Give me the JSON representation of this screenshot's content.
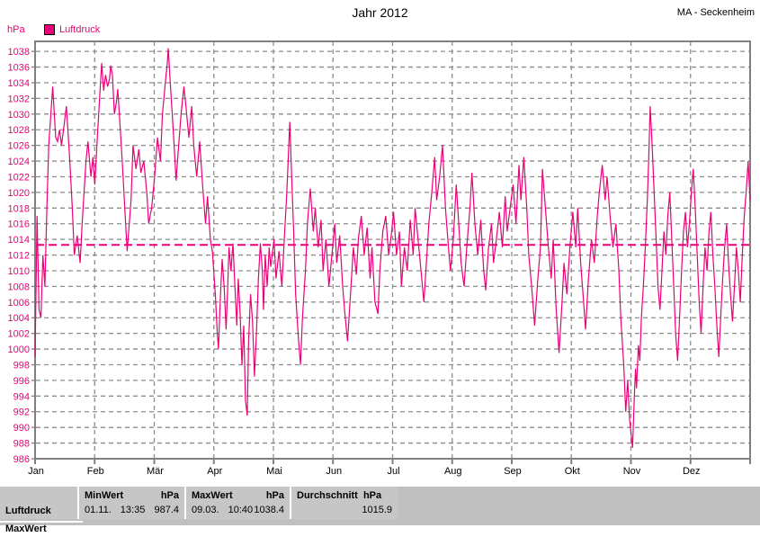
{
  "header": {
    "title": "Jahr 2012",
    "station": "MA - Seckenheim"
  },
  "legend": {
    "label": "Luftdruck"
  },
  "axis": {
    "unit": "hPa",
    "y_ticks": [
      1038,
      1036,
      1034,
      1032,
      1030,
      1028,
      1026,
      1024,
      1022,
      1020,
      1018,
      1016,
      1014,
      1012,
      1010,
      1008,
      1006,
      1004,
      1002,
      1000,
      998,
      996,
      994,
      992,
      990,
      988,
      986
    ],
    "months": [
      "Jan",
      "Feb",
      "Mär",
      "Apr",
      "Mai",
      "Jun",
      "Jul",
      "Aug",
      "Sep",
      "Okt",
      "Nov",
      "Dez"
    ]
  },
  "colors": {
    "series": "#ea0078",
    "grid": "#8c8c8c",
    "frame": "#808080",
    "text": "#000000",
    "table_bg": "#c0c0c0"
  },
  "table": {
    "headers": {
      "min_label": "MinWert",
      "min_unit": "hPa",
      "max_label": "MaxWert",
      "max_unit": "hPa",
      "avg_header": "Durchschnitt  hPa"
    },
    "row": {
      "name": "Luftdruck",
      "min_date": "01.11.",
      "min_time": "13:35",
      "min_value": "987.4",
      "max_date": "09.03.",
      "max_time": "10:40",
      "max_value": "1038.4",
      "avg_value": "1015.9"
    },
    "clipped_row_label": "MaxWert"
  },
  "chart_data": {
    "type": "line",
    "title": "Jahr 2012",
    "station": "MA - Seckenheim",
    "series_name": "Luftdruck",
    "unit": "hPa",
    "ylim": [
      986,
      1038
    ],
    "y_tick_step": 2,
    "x_months": [
      "Jan",
      "Feb",
      "Mär",
      "Apr",
      "Mai",
      "Jun",
      "Jul",
      "Aug",
      "Sep",
      "Okt",
      "Nov",
      "Dez"
    ],
    "grid": true,
    "legend_position": "top-left",
    "mean_line_hpa": 1013.3,
    "stats": {
      "min": {
        "date": "01.11.",
        "time": "13:35",
        "value": 987.4
      },
      "max": {
        "date": "09.03.",
        "time": "10:40",
        "value": 1038.4
      },
      "avg": 1015.9
    },
    "points_day_hpa": [
      [
        1,
        999
      ],
      [
        2,
        1017
      ],
      [
        3,
        1005
      ],
      [
        4,
        1004
      ],
      [
        5,
        1012
      ],
      [
        6,
        1008
      ],
      [
        7,
        1018
      ],
      [
        8,
        1026
      ],
      [
        10,
        1033.5
      ],
      [
        11.5,
        1027
      ],
      [
        12.5,
        1026.5
      ],
      [
        13.5,
        1028
      ],
      [
        14.5,
        1026
      ],
      [
        16,
        1029
      ],
      [
        17,
        1031
      ],
      [
        18.5,
        1025
      ],
      [
        20,
        1018
      ],
      [
        21,
        1012
      ],
      [
        22.5,
        1014.5
      ],
      [
        24,
        1011
      ],
      [
        25,
        1016
      ],
      [
        27,
        1024
      ],
      [
        28,
        1026.5
      ],
      [
        29.5,
        1022
      ],
      [
        30.5,
        1024.5
      ],
      [
        31.5,
        1021
      ],
      [
        33,
        1028
      ],
      [
        34.5,
        1034.5
      ],
      [
        35,
        1036.5
      ],
      [
        36,
        1033
      ],
      [
        37,
        1035
      ],
      [
        38,
        1033.5
      ],
      [
        39,
        1034.5
      ],
      [
        39.6,
        1036.2
      ],
      [
        40.5,
        1035
      ],
      [
        41.5,
        1030
      ],
      [
        42.5,
        1031.5
      ],
      [
        43.2,
        1033.2
      ],
      [
        44,
        1030
      ],
      [
        45.5,
        1024
      ],
      [
        47,
        1017
      ],
      [
        48,
        1012.5
      ],
      [
        50,
        1019
      ],
      [
        51,
        1026
      ],
      [
        52.5,
        1023
      ],
      [
        54,
        1025.5
      ],
      [
        55,
        1022.5
      ],
      [
        56.5,
        1024
      ],
      [
        58,
        1020
      ],
      [
        59,
        1016
      ],
      [
        60.5,
        1018
      ],
      [
        62,
        1022
      ],
      [
        63.5,
        1027
      ],
      [
        65,
        1024
      ],
      [
        66,
        1030
      ],
      [
        67.5,
        1034
      ],
      [
        68.5,
        1036.5
      ],
      [
        69,
        1038.4
      ],
      [
        70,
        1034
      ],
      [
        71,
        1030
      ],
      [
        72,
        1026
      ],
      [
        73,
        1021.5
      ],
      [
        74,
        1025
      ],
      [
        75.5,
        1030
      ],
      [
        77,
        1033.5
      ],
      [
        78,
        1031
      ],
      [
        79.5,
        1027
      ],
      [
        81,
        1031
      ],
      [
        82,
        1026
      ],
      [
        83.5,
        1022
      ],
      [
        85,
        1026.5
      ],
      [
        86.5,
        1021
      ],
      [
        88,
        1016
      ],
      [
        89,
        1019.5
      ],
      [
        90.5,
        1014
      ],
      [
        91.5,
        1012.5
      ],
      [
        93,
        1007
      ],
      [
        94,
        1002
      ],
      [
        94.6,
        1000
      ],
      [
        95.5,
        1006
      ],
      [
        96.5,
        1011.5
      ],
      [
        97.5,
        1008
      ],
      [
        98.5,
        1002.5
      ],
      [
        99.2,
        1007
      ],
      [
        100,
        1013
      ],
      [
        101,
        1010
      ],
      [
        102,
        1013.5
      ],
      [
        103,
        1008
      ],
      [
        104,
        1003
      ],
      [
        104.7,
        1009
      ],
      [
        105.6,
        1005
      ],
      [
        106.6,
        998
      ],
      [
        107.5,
        1003
      ],
      [
        108.4,
        993.5
      ],
      [
        109.3,
        991.5
      ],
      [
        110,
        1001
      ],
      [
        111,
        1007
      ],
      [
        112,
        1003.5
      ],
      [
        113,
        996.5
      ],
      [
        114,
        1002
      ],
      [
        115,
        1009
      ],
      [
        116,
        1013.5
      ],
      [
        117,
        1010
      ],
      [
        117.6,
        1005
      ],
      [
        118.5,
        1012
      ],
      [
        119.5,
        1008
      ],
      [
        120.5,
        1013
      ],
      [
        121.3,
        1010.5
      ],
      [
        123,
        1014
      ],
      [
        124,
        1009
      ],
      [
        125.5,
        1012.5
      ],
      [
        127,
        1008
      ],
      [
        128,
        1013
      ],
      [
        129.5,
        1020
      ],
      [
        131,
        1029
      ],
      [
        132,
        1022
      ],
      [
        133,
        1015
      ],
      [
        134,
        1007
      ],
      [
        135.5,
        1001
      ],
      [
        136.5,
        998
      ],
      [
        137.5,
        1004
      ],
      [
        139,
        1010
      ],
      [
        140,
        1016
      ],
      [
        141.5,
        1020.5
      ],
      [
        143,
        1015
      ],
      [
        144,
        1018
      ],
      [
        145.5,
        1013
      ],
      [
        147,
        1016.5
      ],
      [
        148,
        1010
      ],
      [
        149.5,
        1014
      ],
      [
        151,
        1008
      ],
      [
        152.5,
        1012
      ],
      [
        154,
        1016
      ],
      [
        155,
        1011
      ],
      [
        156.5,
        1014.5
      ],
      [
        158,
        1008
      ],
      [
        159,
        1005
      ],
      [
        160.5,
        1001
      ],
      [
        162,
        1007
      ],
      [
        163.5,
        1013
      ],
      [
        165,
        1009.5
      ],
      [
        166,
        1014
      ],
      [
        167.5,
        1017
      ],
      [
        169,
        1012
      ],
      [
        170.5,
        1015.5
      ],
      [
        172,
        1009
      ],
      [
        173,
        1013
      ],
      [
        174.5,
        1006
      ],
      [
        176,
        1004.5
      ],
      [
        177,
        1010
      ],
      [
        178.5,
        1015
      ],
      [
        180,
        1017
      ],
      [
        181.5,
        1012
      ],
      [
        182.8,
        1014.5
      ],
      [
        184,
        1017.5
      ],
      [
        185.5,
        1012
      ],
      [
        187,
        1015
      ],
      [
        188,
        1008
      ],
      [
        189.5,
        1013
      ],
      [
        191,
        1010
      ],
      [
        192.5,
        1016.5
      ],
      [
        194,
        1012
      ],
      [
        195,
        1018
      ],
      [
        196.5,
        1014
      ],
      [
        198,
        1010
      ],
      [
        199.5,
        1006
      ],
      [
        201,
        1012
      ],
      [
        202,
        1016
      ],
      [
        203.5,
        1020
      ],
      [
        205,
        1024.5
      ],
      [
        206,
        1019
      ],
      [
        207.5,
        1022
      ],
      [
        209,
        1026
      ],
      [
        210.5,
        1018
      ],
      [
        212,
        1013
      ],
      [
        213,
        1010
      ],
      [
        214.5,
        1014
      ],
      [
        216,
        1021
      ],
      [
        217,
        1017
      ],
      [
        218.5,
        1011
      ],
      [
        220,
        1008
      ],
      [
        221.5,
        1013.5
      ],
      [
        223,
        1018
      ],
      [
        224,
        1022.5
      ],
      [
        225.5,
        1016
      ],
      [
        227,
        1012
      ],
      [
        228.5,
        1016.5
      ],
      [
        230,
        1010
      ],
      [
        231,
        1007.5
      ],
      [
        232.5,
        1013
      ],
      [
        234,
        1016
      ],
      [
        235,
        1011
      ],
      [
        236.5,
        1014
      ],
      [
        238,
        1017.5
      ],
      [
        239.5,
        1013
      ],
      [
        241,
        1019.5
      ],
      [
        242,
        1015
      ],
      [
        243.5,
        1018
      ],
      [
        245,
        1021
      ],
      [
        246.5,
        1016
      ],
      [
        248,
        1023.5
      ],
      [
        249,
        1019
      ],
      [
        250.5,
        1024.5
      ],
      [
        252,
        1018
      ],
      [
        253,
        1012
      ],
      [
        254.5,
        1008
      ],
      [
        256,
        1003
      ],
      [
        257.5,
        1008.5
      ],
      [
        259,
        1013
      ],
      [
        260,
        1023
      ],
      [
        261.5,
        1018
      ],
      [
        263,
        1013
      ],
      [
        264.5,
        1009
      ],
      [
        265.5,
        1014
      ],
      [
        267,
        1005
      ],
      [
        268.5,
        999.5
      ],
      [
        270,
        1006
      ],
      [
        271,
        1011
      ],
      [
        272.5,
        1007
      ],
      [
        274,
        1013
      ],
      [
        275.5,
        1017.5
      ],
      [
        277,
        1013
      ],
      [
        278,
        1018
      ],
      [
        279.5,
        1011
      ],
      [
        281,
        1006
      ],
      [
        282,
        1002.5
      ],
      [
        283.5,
        1009
      ],
      [
        285,
        1014
      ],
      [
        286.5,
        1011
      ],
      [
        288,
        1017
      ],
      [
        289,
        1020
      ],
      [
        290.5,
        1023.5
      ],
      [
        292,
        1019
      ],
      [
        293,
        1022
      ],
      [
        294.5,
        1017
      ],
      [
        296,
        1013
      ],
      [
        297.5,
        1016
      ],
      [
        299,
        1010
      ],
      [
        300,
        1004
      ],
      [
        301.5,
        998
      ],
      [
        302.5,
        992
      ],
      [
        303.5,
        996
      ],
      [
        304.5,
        991
      ],
      [
        306,
        987.4
      ],
      [
        306.9,
        994
      ],
      [
        307.5,
        997.5
      ],
      [
        308,
        995
      ],
      [
        309,
        1000.5
      ],
      [
        309.7,
        998.5
      ],
      [
        310.5,
        1004
      ],
      [
        311.5,
        1008
      ],
      [
        312.5,
        1013
      ],
      [
        313.5,
        1019
      ],
      [
        314.2,
        1024
      ],
      [
        315,
        1031
      ],
      [
        316,
        1026
      ],
      [
        317,
        1020
      ],
      [
        318,
        1014
      ],
      [
        319,
        1008
      ],
      [
        320,
        1005
      ],
      [
        321,
        1010
      ],
      [
        322,
        1015
      ],
      [
        323,
        1012
      ],
      [
        324,
        1017
      ],
      [
        325,
        1020
      ],
      [
        326,
        1014
      ],
      [
        327,
        1008
      ],
      [
        328,
        1002
      ],
      [
        329,
        998.5
      ],
      [
        330,
        1004
      ],
      [
        331,
        1010
      ],
      [
        332,
        1015
      ],
      [
        333,
        1017.5
      ],
      [
        334,
        1013
      ],
      [
        335,
        1016
      ],
      [
        336,
        1020
      ],
      [
        337,
        1023
      ],
      [
        338,
        1018
      ],
      [
        339,
        1012
      ],
      [
        340,
        1006
      ],
      [
        341,
        1002
      ],
      [
        342,
        1008
      ],
      [
        343,
        1013
      ],
      [
        344,
        1010
      ],
      [
        345,
        1015
      ],
      [
        346,
        1017.5
      ],
      [
        347,
        1012
      ],
      [
        348,
        1008
      ],
      [
        349,
        1003
      ],
      [
        350,
        999
      ],
      [
        351,
        1004
      ],
      [
        352,
        1009
      ],
      [
        353,
        1013
      ],
      [
        354,
        1016
      ],
      [
        355,
        1011
      ],
      [
        356,
        1007
      ],
      [
        357,
        1003.5
      ],
      [
        358,
        1008
      ],
      [
        359,
        1013
      ],
      [
        360,
        1010
      ],
      [
        361,
        1006
      ],
      [
        362,
        1012
      ],
      [
        363,
        1017
      ],
      [
        364,
        1020
      ],
      [
        365,
        1024
      ],
      [
        366,
        1019
      ]
    ]
  }
}
